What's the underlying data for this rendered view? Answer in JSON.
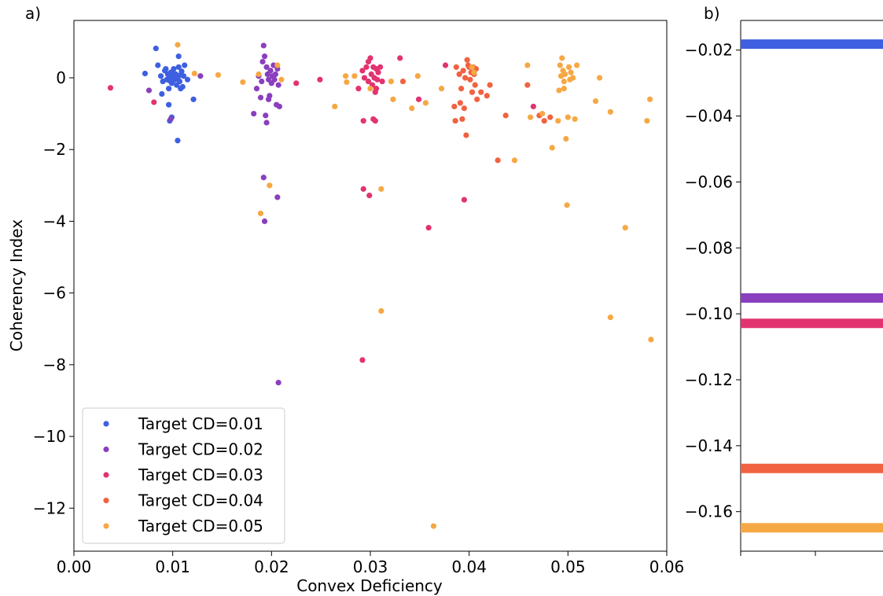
{
  "panel_a": {
    "label": "a)",
    "xlabel": "Convex Deficiency",
    "ylabel": "Coherency Index"
  },
  "panel_b": {
    "label": "b)"
  },
  "chart_data": [
    {
      "type": "scatter",
      "xlabel": "Convex Deficiency",
      "ylabel": "Coherency Index",
      "xlim": [
        0.0,
        0.06
      ],
      "ylim": [
        -13.2,
        1.6
      ],
      "x_ticks": [
        0.0,
        0.01,
        0.02,
        0.03,
        0.04,
        0.05,
        0.06
      ],
      "x_tick_labels": [
        "0.00",
        "0.01",
        "0.02",
        "0.03",
        "0.04",
        "0.05",
        "0.06"
      ],
      "y_ticks": [
        0,
        -2,
        -4,
        -6,
        -8,
        -10,
        -12
      ],
      "y_tick_labels": [
        "0",
        "−2",
        "−4",
        "−6",
        "−8",
        "−10",
        "−12"
      ],
      "grid": false,
      "legend": "lower-left",
      "series": [
        {
          "name": "Target CD=0.01",
          "color": "#3d5fe0",
          "points": [
            [
              0.0072,
              0.12
            ],
            [
              0.0083,
              0.82
            ],
            [
              0.0085,
              0.35
            ],
            [
              0.0088,
              0.05
            ],
            [
              0.009,
              -0.1
            ],
            [
              0.0092,
              0.2
            ],
            [
              0.0094,
              -0.05
            ],
            [
              0.0095,
              0.1
            ],
            [
              0.0096,
              -0.3
            ],
            [
              0.0097,
              0.0
            ],
            [
              0.0098,
              0.15
            ],
            [
              0.0099,
              -0.15
            ],
            [
              0.01,
              0.05
            ],
            [
              0.0101,
              0.25
            ],
            [
              0.0102,
              -0.05
            ],
            [
              0.0103,
              0.1
            ],
            [
              0.0104,
              -0.2
            ],
            [
              0.0105,
              0.0
            ],
            [
              0.0106,
              0.3
            ],
            [
              0.0107,
              -0.1
            ],
            [
              0.0108,
              0.08
            ],
            [
              0.0109,
              0.18
            ],
            [
              0.011,
              -0.25
            ],
            [
              0.0111,
              0.05
            ],
            [
              0.0093,
              0.25
            ],
            [
              0.0097,
              -0.08
            ],
            [
              0.0101,
              0.12
            ],
            [
              0.0104,
              0.0
            ],
            [
              0.0106,
              0.6
            ],
            [
              0.0099,
              -1.1
            ],
            [
              0.0097,
              -1.2
            ],
            [
              0.0096,
              -0.75
            ],
            [
              0.0105,
              -1.75
            ],
            [
              0.0121,
              -0.6
            ],
            [
              0.0108,
              -0.3
            ],
            [
              0.0112,
              0.35
            ],
            [
              0.0089,
              -0.45
            ],
            [
              0.0115,
              -0.05
            ]
          ]
        },
        {
          "name": "Target CD=0.02",
          "color": "#8a3fbe",
          "points": [
            [
              0.0076,
              -0.35
            ],
            [
              0.0128,
              0.05
            ],
            [
              0.0185,
              -0.3
            ],
            [
              0.0187,
              0.05
            ],
            [
              0.019,
              -0.1
            ],
            [
              0.0192,
              0.9
            ],
            [
              0.0193,
              0.6
            ],
            [
              0.0195,
              0.3
            ],
            [
              0.0196,
              0.1
            ],
            [
              0.0197,
              -0.05
            ],
            [
              0.0198,
              -0.5
            ],
            [
              0.0199,
              0.2
            ],
            [
              0.02,
              -0.15
            ],
            [
              0.0201,
              0.05
            ],
            [
              0.0202,
              0.35
            ],
            [
              0.0203,
              -0.05
            ],
            [
              0.0204,
              0.1
            ],
            [
              0.0205,
              -0.75
            ],
            [
              0.0206,
              0.25
            ],
            [
              0.0207,
              -0.2
            ],
            [
              0.0208,
              -0.8
            ],
            [
              0.0194,
              -1.05
            ],
            [
              0.0195,
              -1.25
            ],
            [
              0.0182,
              -1.0
            ],
            [
              0.0192,
              -2.78
            ],
            [
              0.0193,
              -4.0
            ],
            [
              0.0206,
              -3.33
            ],
            [
              0.0207,
              -8.5
            ],
            [
              0.0197,
              -0.6
            ],
            [
              0.0191,
              0.45
            ],
            [
              0.0189,
              -0.55
            ],
            [
              0.0098,
              -1.15
            ]
          ]
        },
        {
          "name": "Target CD=0.03",
          "color": "#e23370",
          "points": [
            [
              0.0037,
              -0.28
            ],
            [
              0.0081,
              -0.68
            ],
            [
              0.0225,
              -0.15
            ],
            [
              0.0249,
              -0.05
            ],
            [
              0.0288,
              -0.3
            ],
            [
              0.0292,
              0.2
            ],
            [
              0.0294,
              0.0
            ],
            [
              0.0296,
              0.3
            ],
            [
              0.0298,
              -0.1
            ],
            [
              0.03,
              0.55
            ],
            [
              0.0301,
              0.1
            ],
            [
              0.0302,
              -0.2
            ],
            [
              0.0303,
              0.3
            ],
            [
              0.0304,
              0.0
            ],
            [
              0.0305,
              -0.4
            ],
            [
              0.0306,
              0.25
            ],
            [
              0.0307,
              -0.05
            ],
            [
              0.0308,
              0.15
            ],
            [
              0.031,
              0.3
            ],
            [
              0.0312,
              -0.1
            ],
            [
              0.0293,
              -1.2
            ],
            [
              0.0303,
              -1.15
            ],
            [
              0.0305,
              -1.2
            ],
            [
              0.033,
              0.55
            ],
            [
              0.0349,
              -0.6
            ],
            [
              0.0376,
              0.35
            ],
            [
              0.0293,
              -3.1
            ],
            [
              0.0299,
              -3.28
            ],
            [
              0.0359,
              -4.18
            ],
            [
              0.0292,
              -7.87
            ],
            [
              0.0395,
              -3.4
            ],
            [
              0.0465,
              -0.8
            ],
            [
              0.0298,
              0.45
            ],
            [
              0.0306,
              -0.3
            ]
          ]
        },
        {
          "name": "Target CD=0.04",
          "color": "#f06240",
          "points": [
            [
              0.0333,
              -0.1
            ],
            [
              0.0385,
              -0.8
            ],
            [
              0.0387,
              0.3
            ],
            [
              0.039,
              0.1
            ],
            [
              0.0392,
              -0.3
            ],
            [
              0.0394,
              0.2
            ],
            [
              0.0396,
              0.0
            ],
            [
              0.0398,
              0.5
            ],
            [
              0.04,
              0.3
            ],
            [
              0.0401,
              -0.05
            ],
            [
              0.0402,
              0.15
            ],
            [
              0.0403,
              -0.4
            ],
            [
              0.0404,
              0.3
            ],
            [
              0.0405,
              0.1
            ],
            [
              0.0406,
              -0.2
            ],
            [
              0.0407,
              0.25
            ],
            [
              0.0408,
              -0.6
            ],
            [
              0.0391,
              -0.7
            ],
            [
              0.0393,
              -1.15
            ],
            [
              0.0395,
              -0.85
            ],
            [
              0.0397,
              -1.6
            ],
            [
              0.0412,
              -0.4
            ],
            [
              0.0418,
              -0.5
            ],
            [
              0.0421,
              -0.2
            ],
            [
              0.0429,
              -2.3
            ],
            [
              0.0437,
              -1.05
            ],
            [
              0.0459,
              -0.2
            ],
            [
              0.0471,
              -1.05
            ],
            [
              0.0476,
              -1.2
            ],
            [
              0.0482,
              -1.1
            ],
            [
              0.0386,
              -1.2
            ],
            [
              0.0399,
              0.35
            ]
          ]
        },
        {
          "name": "Target CD=0.05",
          "color": "#f6a844",
          "points": [
            [
              0.0105,
              0.92
            ],
            [
              0.0122,
              0.12
            ],
            [
              0.0146,
              0.08
            ],
            [
              0.0171,
              -0.12
            ],
            [
              0.0187,
              0.1
            ],
            [
              0.0206,
              0.35
            ],
            [
              0.021,
              -0.05
            ],
            [
              0.0189,
              -3.78
            ],
            [
              0.0198,
              -3.0
            ],
            [
              0.0264,
              -0.8
            ],
            [
              0.0275,
              0.05
            ],
            [
              0.0276,
              -0.12
            ],
            [
              0.0284,
              0.05
            ],
            [
              0.03,
              -0.3
            ],
            [
              0.0311,
              -3.1
            ],
            [
              0.0311,
              -6.5
            ],
            [
              0.0321,
              -0.1
            ],
            [
              0.0323,
              -0.6
            ],
            [
              0.0342,
              -0.85
            ],
            [
              0.0348,
              0.05
            ],
            [
              0.0356,
              -0.7
            ],
            [
              0.0364,
              -12.5
            ],
            [
              0.0372,
              -0.3
            ],
            [
              0.0403,
              0.3
            ],
            [
              0.0405,
              0.15
            ],
            [
              0.0446,
              -2.3
            ],
            [
              0.0459,
              0.35
            ],
            [
              0.0462,
              -1.1
            ],
            [
              0.0474,
              -1.0
            ],
            [
              0.0484,
              -1.95
            ],
            [
              0.049,
              -1.2
            ],
            [
              0.0491,
              -0.35
            ],
            [
              0.0492,
              0.35
            ],
            [
              0.0493,
              0.05
            ],
            [
              0.0494,
              0.55
            ],
            [
              0.0495,
              0.2
            ],
            [
              0.0496,
              -0.3
            ],
            [
              0.0497,
              0.1
            ],
            [
              0.0498,
              -1.7
            ],
            [
              0.0499,
              -3.55
            ],
            [
              0.05,
              -1.1
            ],
            [
              0.0501,
              0.3
            ],
            [
              0.0502,
              -0.05
            ],
            [
              0.0503,
              0.15
            ],
            [
              0.0505,
              0.0
            ],
            [
              0.0507,
              -1.15
            ],
            [
              0.0509,
              0.35
            ],
            [
              0.0532,
              0.0
            ],
            [
              0.0528,
              -0.65
            ],
            [
              0.0543,
              -0.95
            ],
            [
              0.0558,
              -4.18
            ],
            [
              0.0543,
              -6.68
            ],
            [
              0.058,
              -1.2
            ],
            [
              0.0583,
              -0.6
            ],
            [
              0.0584,
              -7.3
            ],
            [
              0.0496,
              -0.1
            ]
          ]
        }
      ]
    },
    {
      "type": "bar",
      "orientation": "horizontal-lines",
      "ylim": [
        -0.172,
        -0.011
      ],
      "y_ticks": [
        -0.02,
        -0.04,
        -0.06,
        -0.08,
        -0.1,
        -0.12,
        -0.14,
        -0.16
      ],
      "y_tick_labels": [
        "−0.02",
        "−0.04",
        "−0.06",
        "−0.08",
        "−0.10",
        "−0.12",
        "−0.14",
        "−0.16"
      ],
      "series": [
        {
          "color": "#3d5fe0",
          "value": -0.0182
        },
        {
          "color": "#8a3fbe",
          "value": -0.0952
        },
        {
          "color": "#e23370",
          "value": -0.1029
        },
        {
          "color": "#f06240",
          "value": -0.1469
        },
        {
          "color": "#f6a844",
          "value": -0.1649
        }
      ]
    }
  ]
}
